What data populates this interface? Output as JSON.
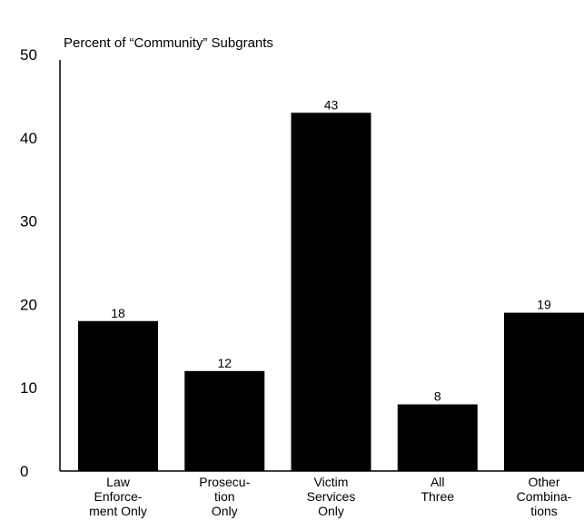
{
  "chart_data": {
    "type": "bar",
    "ylabel": "Percent of “Community” Subgrants",
    "ylim": [
      0,
      50
    ],
    "yticks": [
      "0",
      "10",
      "20",
      "30",
      "40",
      "50"
    ],
    "categories": [
      [
        "Law",
        "Enforce-",
        "ment Only"
      ],
      [
        "Prosecu-",
        "tion",
        "Only"
      ],
      [
        "Victim",
        "Services",
        "Only"
      ],
      [
        "All",
        "Three"
      ],
      [
        "Other",
        "Combina-",
        "tions"
      ]
    ],
    "values": [
      18,
      12,
      43,
      8,
      19
    ],
    "value_labels": [
      "18",
      "12",
      "43",
      "8",
      "19"
    ],
    "bar_color": "#000000",
    "grid": false,
    "legend": "none"
  }
}
